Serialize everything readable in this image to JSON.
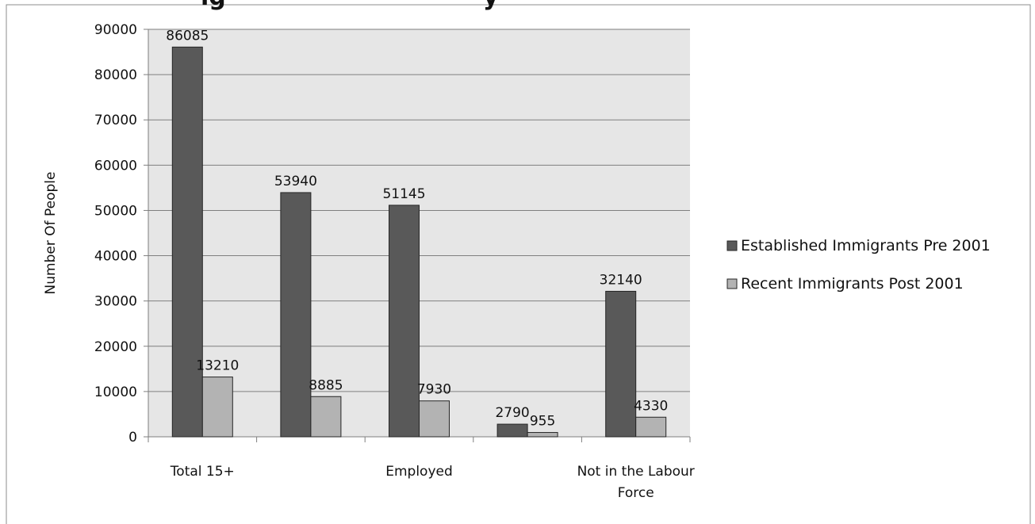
{
  "chart_data": {
    "type": "bar",
    "title_fragment_left": "ig",
    "title_fragment_right": "y",
    "categories": [
      [
        "Total 15+"
      ],
      [
        ""
      ],
      [
        "Employed"
      ],
      [
        ""
      ],
      [
        "Not in the Labour",
        "Force"
      ]
    ],
    "series": [
      {
        "name": "Established Immigrants Pre 2001",
        "color": "#595959",
        "values": [
          86085,
          53940,
          51145,
          2790,
          32140
        ]
      },
      {
        "name": "Recent Immigrants Post 2001",
        "color": "#b3b3b3",
        "values": [
          13210,
          8885,
          7930,
          955,
          4330
        ]
      }
    ],
    "ylabel": "Number Of People",
    "xlabel": "",
    "ylim": [
      0,
      90000
    ],
    "ytick_step": 10000,
    "grid": true,
    "legend_position": "right"
  }
}
